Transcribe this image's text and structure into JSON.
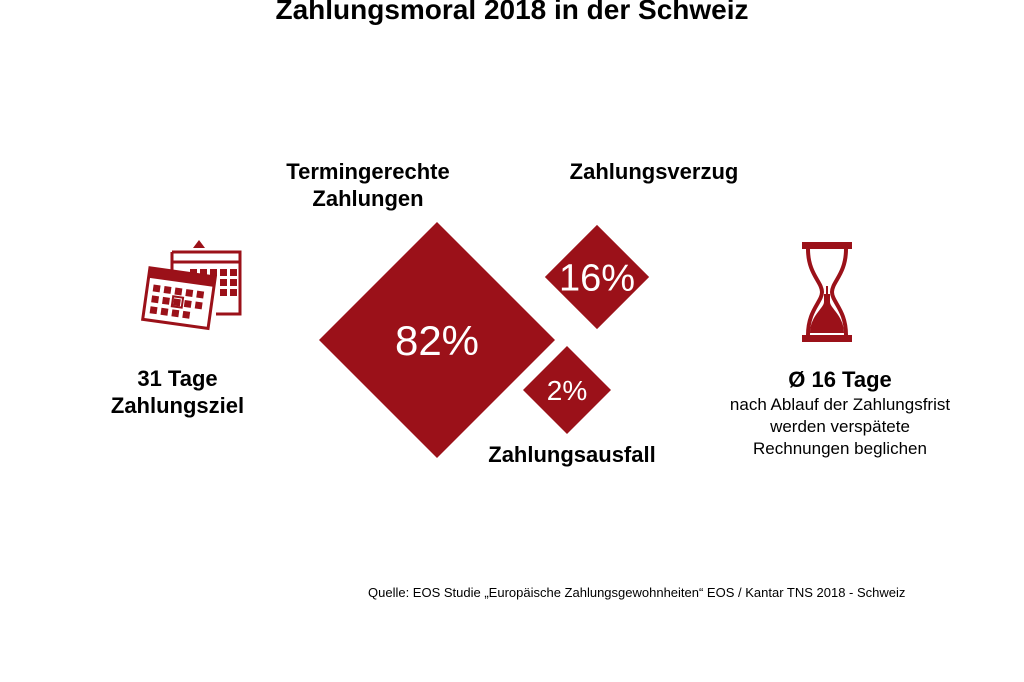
{
  "title": "Zahlungsmoral 2018 in der Schweiz",
  "colors": {
    "accent": "#9b1119",
    "text": "#000000",
    "background": "#ffffff"
  },
  "left_block": {
    "icon": "calendar-icon",
    "value_line": "31 Tage",
    "label_line": "Zahlungsziel"
  },
  "right_block": {
    "icon": "hourglass-icon",
    "value_line": "Ø 16 Tage",
    "desc_lines": [
      "nach Ablauf der Zahlungsfrist",
      "werden verspätete",
      "Rechnungen beglichen"
    ]
  },
  "chart_data": {
    "type": "diamond-area",
    "title": "Zahlungsmoral 2018 in der Schweiz",
    "unit": "%",
    "categories": [
      "Termingerechte Zahlungen",
      "Zahlungsverzug",
      "Zahlungsausfall"
    ],
    "values": [
      82,
      16,
      2
    ],
    "labels": [
      {
        "lines": [
          "Termingerechte",
          "Zahlungen"
        ],
        "value_text": "82%"
      },
      {
        "lines": [
          "Zahlungsverzug"
        ],
        "value_text": "16%"
      },
      {
        "lines": [
          "Zahlungsausfall"
        ],
        "value_text": "2%"
      }
    ]
  },
  "source": "Quelle: EOS Studie „Europäische Zahlungsgewohnheiten“ EOS / Kantar TNS 2018 - Schweiz"
}
